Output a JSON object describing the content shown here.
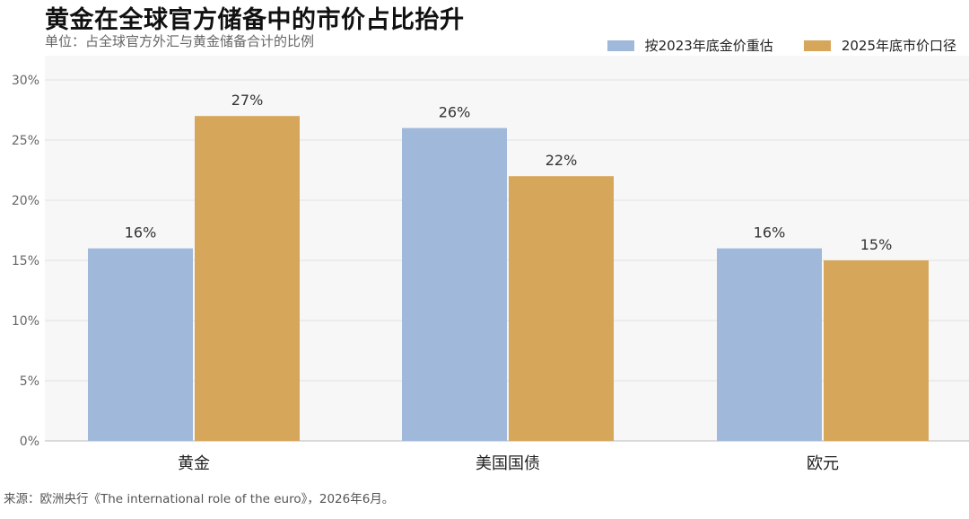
{
  "title": "黄金在全球官方储备中的市价占比抬升",
  "subtitle": "单位：占全球官方外汇与黄金储备合计的比例",
  "source": "来源：欧洲央行《The international role of the euro》，2026年6月。",
  "chart_data": {
    "type": "bar",
    "categories": [
      "黄金",
      "美国国债",
      "欧元"
    ],
    "series": [
      {
        "name": "按2023年底金价重估",
        "values": [
          16,
          26,
          16
        ],
        "labels": [
          "16%",
          "26%",
          "16%"
        ],
        "color": "#a0b8da"
      },
      {
        "name": "2025年底市价口径",
        "values": [
          27,
          22,
          15
        ],
        "labels": [
          "27%",
          "22%",
          "15%"
        ],
        "color": "#d6a65a"
      }
    ],
    "ylim": [
      0,
      30
    ],
    "yticks": [
      0,
      5,
      10,
      15,
      20,
      25,
      30
    ],
    "ytick_labels": [
      "0%",
      "5%",
      "10%",
      "15%",
      "20%",
      "25%",
      "30%"
    ],
    "grid": true,
    "legend_position": "top-right",
    "plot_background": "#f7f7f7",
    "grid_color": "#e2e2e2"
  }
}
